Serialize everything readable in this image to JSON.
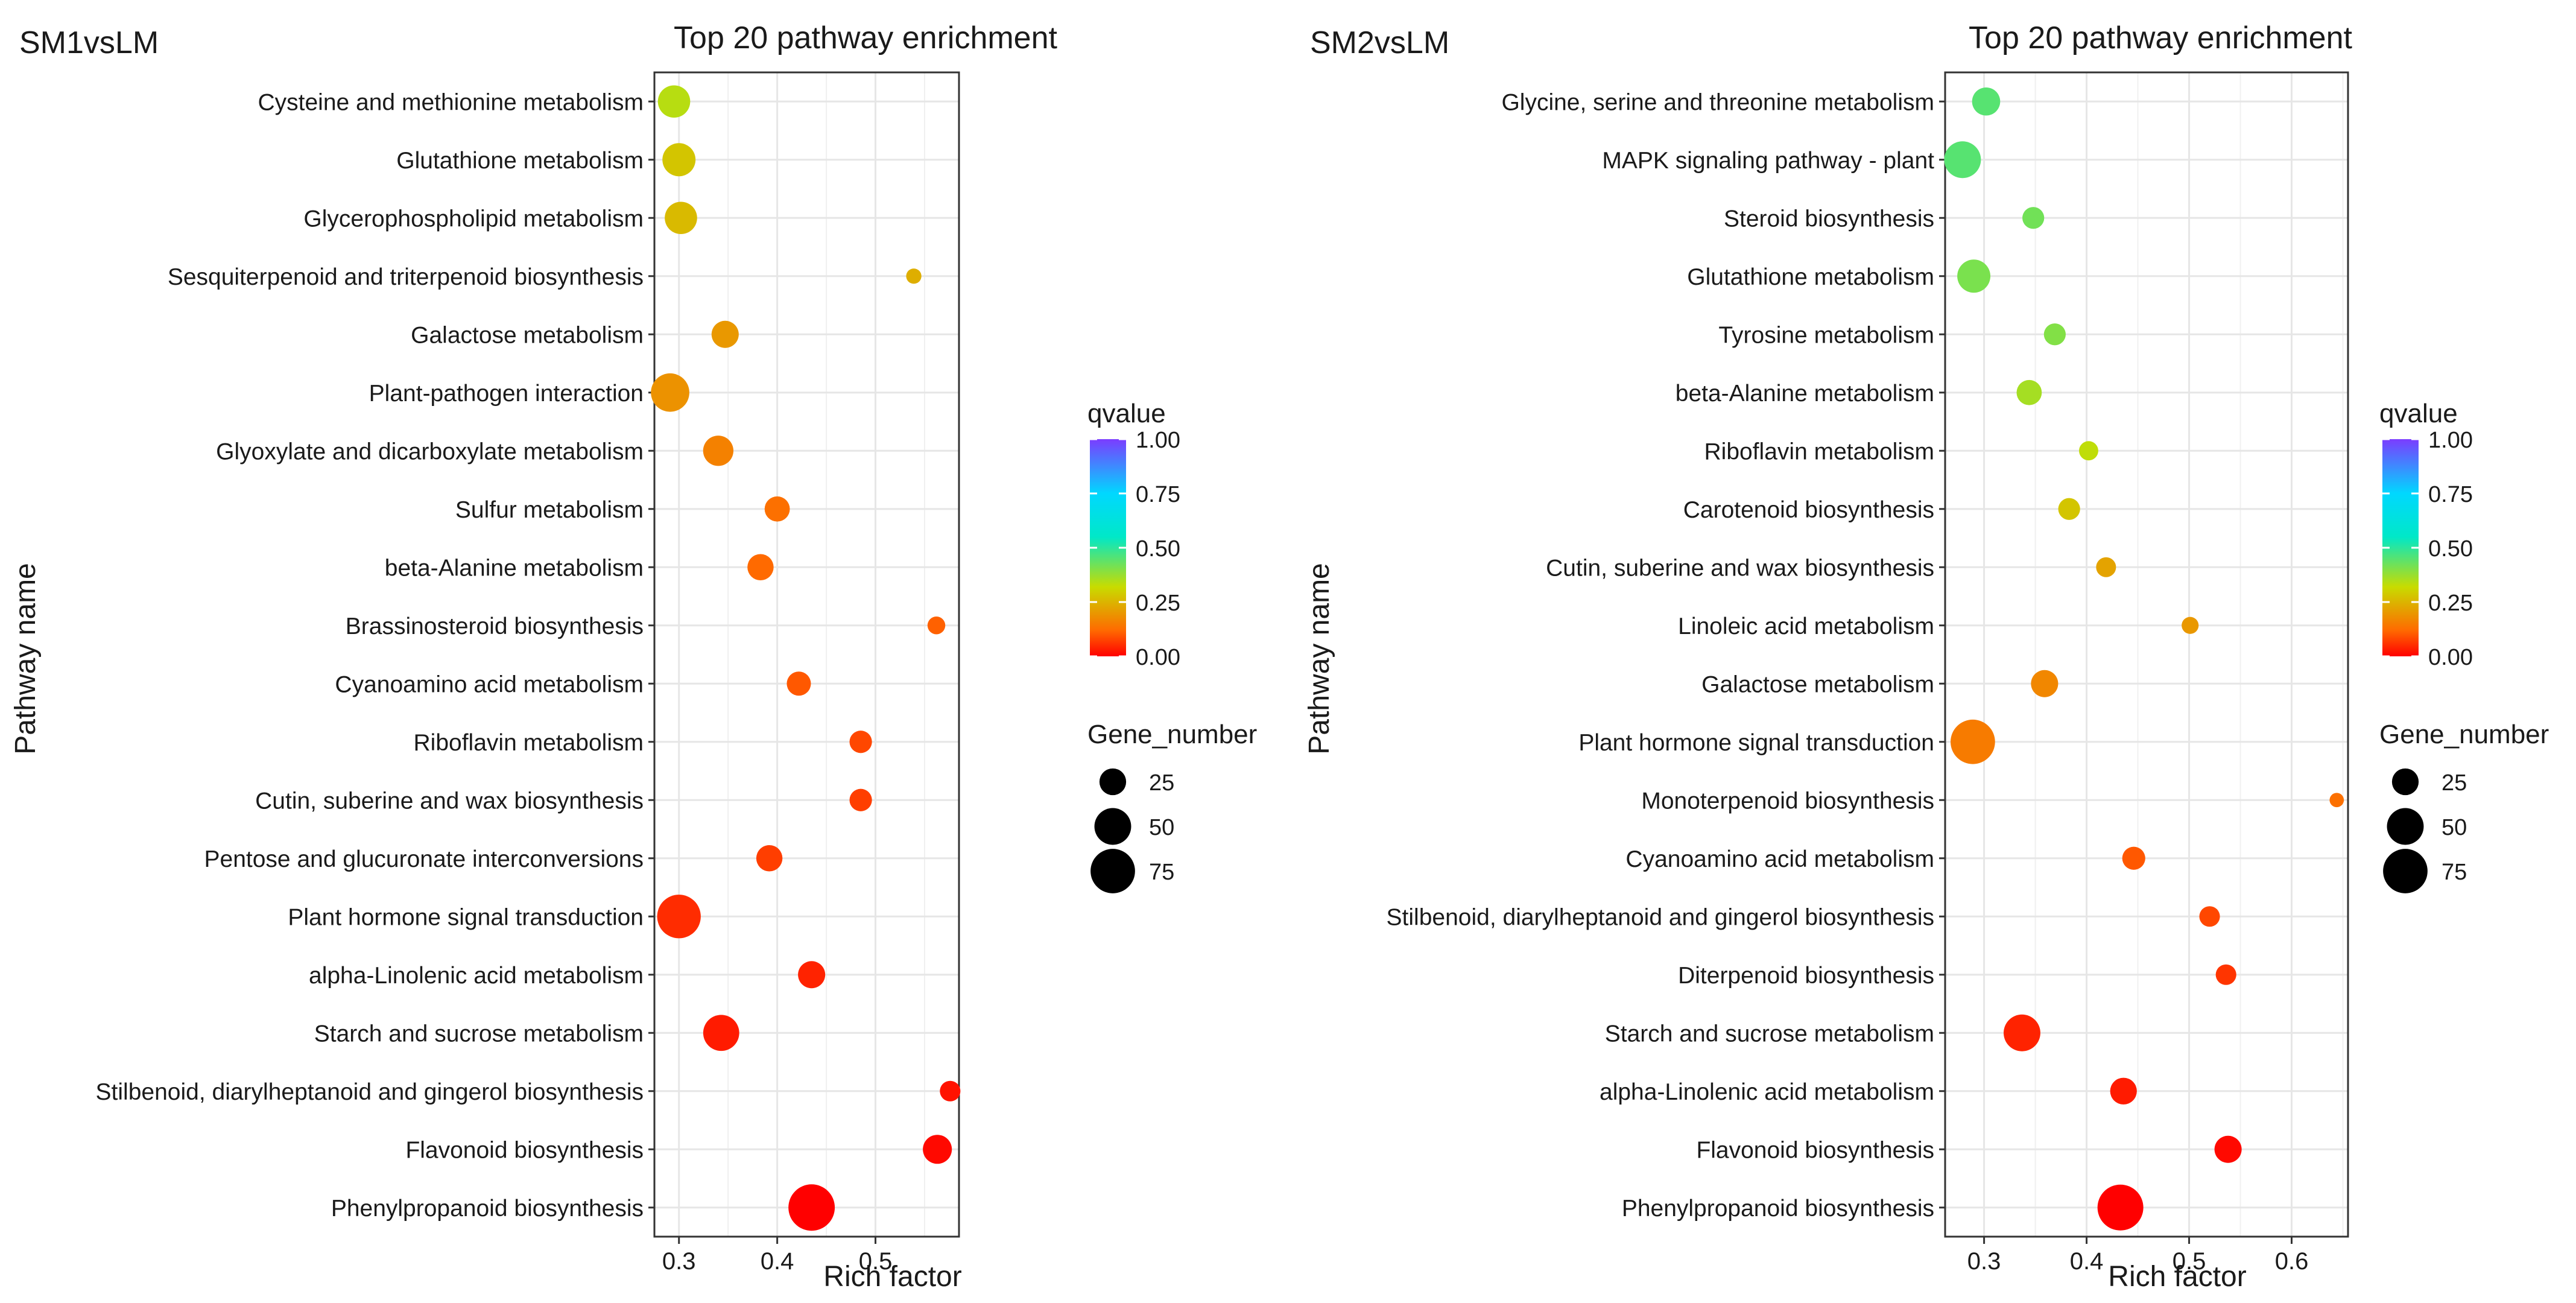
{
  "legend": {
    "color_title": "qvalue",
    "color_ticks": [
      "1.00",
      "0.75",
      "0.50",
      "0.25",
      "0.00"
    ],
    "size_title": "Gene_number",
    "size_ticks": [
      "25",
      "50",
      "75"
    ]
  },
  "colors": {
    "scale": [
      "#ff0000",
      "#ff6a00",
      "#c8dc00",
      "#00e8c8",
      "#00d8ff",
      "#7b3cff"
    ],
    "grid": "#e6e6e6",
    "axis": "#333333"
  },
  "chart_data": [
    {
      "type": "scatter",
      "panel_label": "SM1vsLM",
      "title": "Top 20 pathway enrichment",
      "xlabel": "Rich factor",
      "ylabel": "Pathway name",
      "xlim": [
        0.275,
        0.585
      ],
      "xticks": [
        0.3,
        0.4,
        0.5
      ],
      "xtick_labels": [
        "0.3",
        "0.4",
        "0.5"
      ],
      "size_encodes": "Gene_number",
      "color_encodes": "qvalue",
      "points": [
        {
          "pathway": "Cysteine and methionine metabolism",
          "rich_factor": 0.295,
          "gene_number": 38,
          "qvalue": 0.34
        },
        {
          "pathway": "Glutathione metabolism",
          "rich_factor": 0.3,
          "gene_number": 40,
          "qvalue": 0.28
        },
        {
          "pathway": "Glycerophospholipid metabolism",
          "rich_factor": 0.302,
          "gene_number": 38,
          "qvalue": 0.26
        },
        {
          "pathway": "Sesquiterpenoid and triterpenoid biosynthesis",
          "rich_factor": 0.539,
          "gene_number": 7,
          "qvalue": 0.24
        },
        {
          "pathway": "Galactose metabolism",
          "rich_factor": 0.347,
          "gene_number": 26,
          "qvalue": 0.2
        },
        {
          "pathway": "Plant-pathogen interaction",
          "rich_factor": 0.291,
          "gene_number": 55,
          "qvalue": 0.19
        },
        {
          "pathway": "Glyoxylate and dicarboxylate metabolism",
          "rich_factor": 0.34,
          "gene_number": 33,
          "qvalue": 0.16
        },
        {
          "pathway": "Sulfur metabolism",
          "rich_factor": 0.4,
          "gene_number": 22,
          "qvalue": 0.13
        },
        {
          "pathway": "beta-Alanine metabolism",
          "rich_factor": 0.383,
          "gene_number": 24,
          "qvalue": 0.12
        },
        {
          "pathway": "Brassinosteroid biosynthesis",
          "rich_factor": 0.562,
          "gene_number": 10,
          "qvalue": 0.11
        },
        {
          "pathway": "Cyanoamino acid metabolism",
          "rich_factor": 0.422,
          "gene_number": 20,
          "qvalue": 0.1
        },
        {
          "pathway": "Riboflavin metabolism",
          "rich_factor": 0.485,
          "gene_number": 17,
          "qvalue": 0.08
        },
        {
          "pathway": "Cutin, suberine and wax biosynthesis",
          "rich_factor": 0.485,
          "gene_number": 17,
          "qvalue": 0.07
        },
        {
          "pathway": "Pentose and glucuronate interconversions",
          "rich_factor": 0.392,
          "gene_number": 24,
          "qvalue": 0.07
        },
        {
          "pathway": "Plant hormone signal transduction",
          "rich_factor": 0.3,
          "gene_number": 72,
          "qvalue": 0.05
        },
        {
          "pathway": "alpha-Linolenic acid metabolism",
          "rich_factor": 0.435,
          "gene_number": 26,
          "qvalue": 0.04
        },
        {
          "pathway": "Starch and sucrose metabolism",
          "rich_factor": 0.343,
          "gene_number": 48,
          "qvalue": 0.03
        },
        {
          "pathway": "Stilbenoid, diarylheptanoid and gingerol biosynthesis",
          "rich_factor": 0.576,
          "gene_number": 14,
          "qvalue": 0.02
        },
        {
          "pathway": "Flavonoid biosynthesis",
          "rich_factor": 0.563,
          "gene_number": 30,
          "qvalue": 0.01
        },
        {
          "pathway": "Phenylpropanoid biosynthesis",
          "rich_factor": 0.435,
          "gene_number": 82,
          "qvalue": 0.0
        }
      ]
    },
    {
      "type": "scatter",
      "panel_label": "SM2vsLM",
      "title": "Top 20 pathway enrichment",
      "xlabel": "Rich factor",
      "ylabel": "Pathway name",
      "xlim": [
        0.262,
        0.655
      ],
      "xticks": [
        0.3,
        0.4,
        0.5,
        0.6
      ],
      "xtick_labels": [
        "0.3",
        "0.4",
        "0.5",
        "0.6"
      ],
      "size_encodes": "Gene_number",
      "color_encodes": "qvalue",
      "points": [
        {
          "pathway": "Glycine, serine and threonine metabolism",
          "rich_factor": 0.302,
          "gene_number": 28,
          "qvalue": 0.45
        },
        {
          "pathway": "MAPK signaling pathway - plant",
          "rich_factor": 0.279,
          "gene_number": 50,
          "qvalue": 0.45
        },
        {
          "pathway": "Steroid biosynthesis",
          "rich_factor": 0.348,
          "gene_number": 16,
          "qvalue": 0.42
        },
        {
          "pathway": "Glutathione metabolism",
          "rich_factor": 0.29,
          "gene_number": 40,
          "qvalue": 0.41
        },
        {
          "pathway": "Tyrosine metabolism",
          "rich_factor": 0.369,
          "gene_number": 16,
          "qvalue": 0.4
        },
        {
          "pathway": "beta-Alanine metabolism",
          "rich_factor": 0.344,
          "gene_number": 22,
          "qvalue": 0.36
        },
        {
          "pathway": "Riboflavin metabolism",
          "rich_factor": 0.402,
          "gene_number": 12,
          "qvalue": 0.33
        },
        {
          "pathway": "Carotenoid biosynthesis",
          "rich_factor": 0.383,
          "gene_number": 16,
          "qvalue": 0.28
        },
        {
          "pathway": "Cutin, suberine and wax biosynthesis",
          "rich_factor": 0.419,
          "gene_number": 13,
          "qvalue": 0.22
        },
        {
          "pathway": "Linoleic acid metabolism",
          "rich_factor": 0.501,
          "gene_number": 9,
          "qvalue": 0.2
        },
        {
          "pathway": "Galactose metabolism",
          "rich_factor": 0.359,
          "gene_number": 26,
          "qvalue": 0.17
        },
        {
          "pathway": "Plant hormone signal transduction",
          "rich_factor": 0.289,
          "gene_number": 75,
          "qvalue": 0.15
        },
        {
          "pathway": "Monoterpenoid biosynthesis",
          "rich_factor": 0.644,
          "gene_number": 6,
          "qvalue": 0.13
        },
        {
          "pathway": "Cyanoamino acid metabolism",
          "rich_factor": 0.446,
          "gene_number": 18,
          "qvalue": 0.1
        },
        {
          "pathway": "Stilbenoid, diarylheptanoid and gingerol biosynthesis",
          "rich_factor": 0.52,
          "gene_number": 14,
          "qvalue": 0.08
        },
        {
          "pathway": "Diterpenoid biosynthesis",
          "rich_factor": 0.536,
          "gene_number": 14,
          "qvalue": 0.06
        },
        {
          "pathway": "Starch and sucrose metabolism",
          "rich_factor": 0.337,
          "gene_number": 50,
          "qvalue": 0.04
        },
        {
          "pathway": "alpha-Linolenic acid metabolism",
          "rich_factor": 0.436,
          "gene_number": 25,
          "qvalue": 0.03
        },
        {
          "pathway": "Flavonoid biosynthesis",
          "rich_factor": 0.538,
          "gene_number": 26,
          "qvalue": 0.01
        },
        {
          "pathway": "Phenylpropanoid biosynthesis",
          "rich_factor": 0.433,
          "gene_number": 80,
          "qvalue": 0.0
        }
      ]
    }
  ]
}
